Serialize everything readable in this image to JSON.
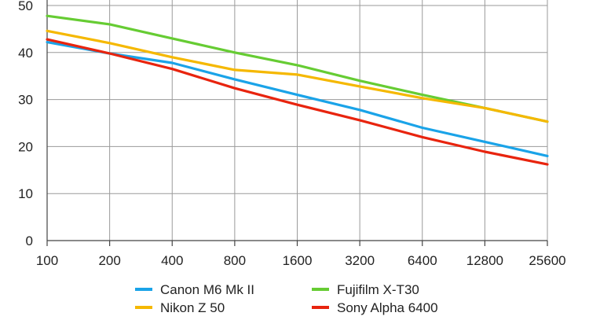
{
  "chart_data": {
    "type": "line",
    "title": "",
    "xlabel": "",
    "ylabel": "",
    "x": [
      100,
      200,
      400,
      800,
      1600,
      3200,
      6400,
      12800,
      25600
    ],
    "x_scale": "log2",
    "x_tick_labels": [
      "100",
      "200",
      "400",
      "800",
      "1600",
      "3200",
      "6400",
      "12800",
      "25600"
    ],
    "ylim": [
      0,
      50
    ],
    "y_ticks": [
      0,
      10,
      20,
      30,
      40,
      50
    ],
    "y_tick_labels": [
      "0",
      "10",
      "20",
      "30",
      "40",
      "50"
    ],
    "grid": true,
    "legend_position": "bottom",
    "series": [
      {
        "name": "Canon M6 Mk II",
        "color": "#1aa3e8",
        "values": [
          42.2,
          39.8,
          37.8,
          34.3,
          31.0,
          27.8,
          24.0,
          21.0,
          18.0
        ]
      },
      {
        "name": "Fujifilm X-T30",
        "color": "#66cc33",
        "values": [
          47.8,
          46.0,
          43.0,
          40.0,
          37.3,
          34.0,
          31.0,
          28.2,
          25.3
        ]
      },
      {
        "name": "Nikon Z 50",
        "color": "#f5b800",
        "values": [
          44.6,
          42.0,
          39.0,
          36.3,
          35.3,
          32.8,
          30.3,
          28.2,
          25.3
        ]
      },
      {
        "name": "Sony Alpha 6400",
        "color": "#e8240e",
        "values": [
          42.8,
          39.8,
          36.5,
          32.4,
          28.9,
          25.6,
          22.0,
          18.9,
          16.2
        ]
      }
    ],
    "legend_order": [
      "Canon M6 Mk II",
      "Fujifilm X-T30",
      "Nikon Z 50",
      "Sony Alpha 6400"
    ]
  }
}
